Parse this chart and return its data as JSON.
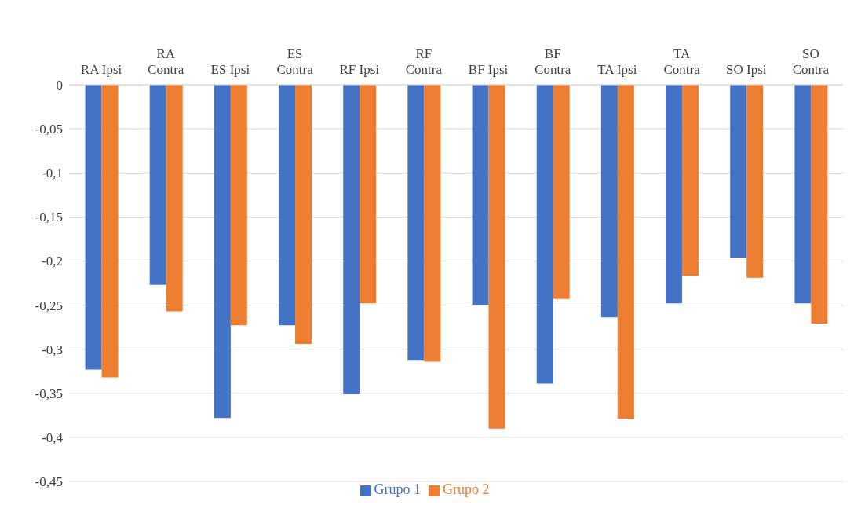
{
  "chart_data": {
    "type": "bar",
    "categories": [
      "RA Ipsi",
      "RA Contra",
      "ES Ipsi",
      "ES Contra",
      "RF Ipsi",
      "RF Contra",
      "BF Ipsi",
      "BF Contra",
      "TA Ipsi",
      "TA Contra",
      "SO Ipsi",
      "SO Contra"
    ],
    "series": [
      {
        "name": "Grupo 1",
        "color": "#4472c4",
        "values": [
          -0.323,
          -0.227,
          -0.378,
          -0.273,
          -0.351,
          -0.313,
          -0.25,
          -0.339,
          -0.264,
          -0.248,
          -0.196,
          -0.248
        ]
      },
      {
        "name": "Grupo 2",
        "color": "#ed7d31",
        "values": [
          -0.332,
          -0.257,
          -0.273,
          -0.294,
          -0.248,
          -0.314,
          -0.39,
          -0.243,
          -0.379,
          -0.217,
          -0.219,
          -0.271
        ]
      }
    ],
    "ylim": [
      -0.45,
      0
    ],
    "yticks": [
      0,
      {
        "value": -0.05,
        "label": "-0,05"
      },
      {
        "value": -0.1,
        "label": "-0,1"
      },
      {
        "value": -0.15,
        "label": "-0,15"
      },
      {
        "value": -0.2,
        "label": "-0,2"
      },
      {
        "value": -0.25,
        "label": "-0,25"
      },
      {
        "value": -0.3,
        "label": "-0,3"
      },
      {
        "value": -0.35,
        "label": "-0,35"
      },
      {
        "value": -0.4,
        "label": "-0,4"
      },
      {
        "value": -0.45,
        "label": "-0,45"
      }
    ],
    "grid": "y",
    "legend": "bottom"
  }
}
